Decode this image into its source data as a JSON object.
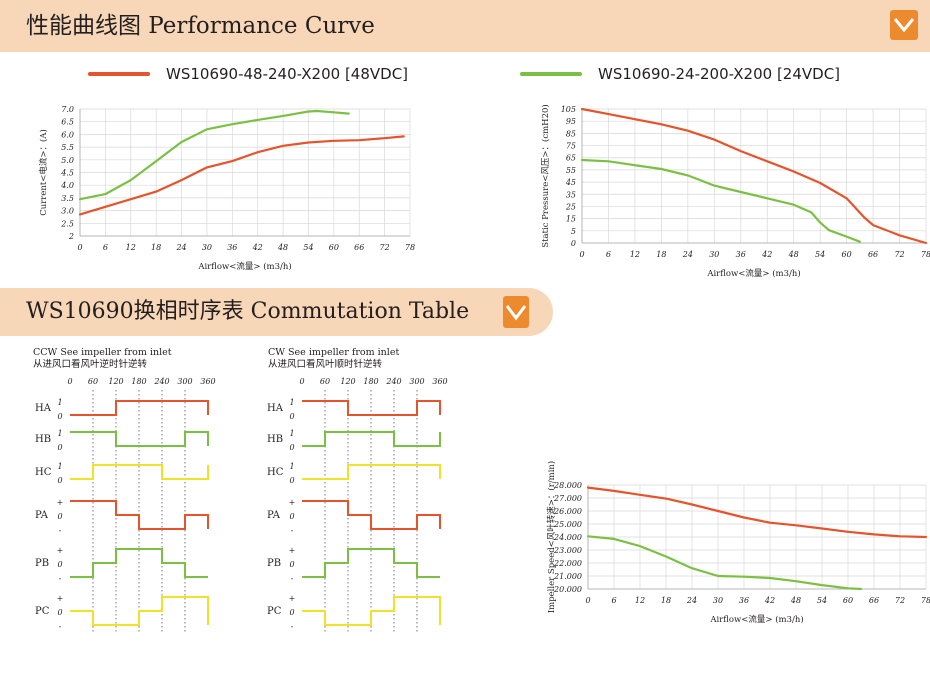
{
  "header": {
    "title": "性能曲线图 Performance Curve",
    "icon": "chevron-down-icon",
    "colors": {
      "banner": "#f8d7b8",
      "icon": "#ee8a2e"
    }
  },
  "legend": [
    {
      "label": "WS10690-48-240-X200 [48VDC]",
      "color": "#e5542b"
    },
    {
      "label": "WS10690-24-200-X200 [24VDC]",
      "color": "#7bc043"
    }
  ],
  "chart_data": [
    {
      "type": "line",
      "ylabel": "Current<电流>：(A)",
      "xlabel": "Airflow<流量> (m3/h)",
      "x_ticks": [
        "0",
        "6",
        "12",
        "18",
        "24",
        "30",
        "36",
        "42",
        "48",
        "54",
        "60",
        "66",
        "72",
        "78"
      ],
      "y_ticks": [
        "2",
        "2.5",
        "3.0",
        "3.5",
        "4.0",
        "4.5",
        "5.0",
        "5.5",
        "6.0",
        "6.5",
        "7.0"
      ],
      "xlim": [
        0,
        78
      ],
      "ylim": [
        2,
        7
      ],
      "grid": true,
      "series": [
        {
          "name": "WS10690-48-240-X200 [48VDC]",
          "color": "#e5542b",
          "x": [
            0,
            6,
            12,
            18,
            24,
            30,
            36,
            42,
            48,
            54,
            60,
            66,
            72,
            76.5
          ],
          "y": [
            2.85,
            3.15,
            3.45,
            3.75,
            4.2,
            4.7,
            4.95,
            5.3,
            5.55,
            5.68,
            5.75,
            5.77,
            5.85,
            5.92
          ]
        },
        {
          "name": "WS10690-24-200-X200 [24VDC]",
          "color": "#7bc043",
          "x": [
            0,
            6,
            12,
            18,
            24,
            30,
            36,
            42,
            48,
            54,
            56,
            60,
            63.5
          ],
          "y": [
            3.45,
            3.65,
            4.2,
            4.95,
            5.7,
            6.2,
            6.4,
            6.57,
            6.73,
            6.9,
            6.92,
            6.87,
            6.82
          ]
        }
      ]
    },
    {
      "type": "line",
      "ylabel": "Static Pressure<风压>：(cmH20)",
      "xlabel": "Airflow<流量> (m3/h)",
      "x_ticks": [
        "0",
        "6",
        "12",
        "18",
        "24",
        "30",
        "36",
        "42",
        "48",
        "54",
        "60",
        "66",
        "72",
        "78"
      ],
      "y_ticks": [
        "0",
        "5",
        "15",
        "25",
        "35",
        "45",
        "55",
        "65",
        "75",
        "85",
        "95",
        "105"
      ],
      "xlim": [
        0,
        78
      ],
      "ylim": [
        0,
        105
      ],
      "grid": true,
      "series": [
        {
          "name": "WS10690-48-240-X200 [48VDC]",
          "color": "#e5542b",
          "x": [
            0,
            6,
            12,
            18,
            24,
            30,
            36,
            42,
            48,
            54,
            60,
            64,
            66,
            72,
            78
          ],
          "y": [
            105,
            101,
            97,
            93,
            88,
            81,
            72,
            64,
            56,
            47,
            35,
            20,
            14,
            6,
            0
          ]
        },
        {
          "name": "WS10690-24-200-X200 [24VDC]",
          "color": "#7bc043",
          "x": [
            0,
            6,
            12,
            18,
            24,
            30,
            36,
            42,
            48,
            52,
            54,
            56,
            60,
            63
          ],
          "y": [
            65,
            64,
            61,
            58,
            53,
            45,
            40,
            35,
            30,
            24,
            16,
            10,
            5,
            1
          ]
        }
      ]
    },
    {
      "type": "line",
      "ylabel": "Impeller Speed<风叶转速>：(r/min)",
      "xlabel": "Airflow<流量> (m3/h)",
      "x_ticks": [
        "0",
        "6",
        "12",
        "18",
        "24",
        "30",
        "36",
        "42",
        "48",
        "54",
        "60",
        "66",
        "72",
        "78"
      ],
      "y_ticks": [
        "20.000",
        "21.000",
        "22.000",
        "23.000",
        "24.000",
        "25.000",
        "26.000",
        "27.000",
        "28.000"
      ],
      "xlim": [
        0,
        78
      ],
      "ylim": [
        20000,
        28000
      ],
      "grid": true,
      "series": [
        {
          "name": "WS10690-48-240-X200 [48VDC]",
          "color": "#e5542b",
          "x": [
            0,
            6,
            12,
            18,
            24,
            30,
            36,
            42,
            48,
            54,
            60,
            66,
            72,
            78
          ],
          "y": [
            27800,
            27550,
            27250,
            26950,
            26500,
            26000,
            25500,
            25100,
            24900,
            24650,
            24400,
            24200,
            24050,
            24000
          ]
        },
        {
          "name": "WS10690-24-200-X200 [24VDC]",
          "color": "#7bc043",
          "x": [
            0,
            6,
            12,
            18,
            24,
            30,
            36,
            42,
            48,
            54,
            60,
            63
          ],
          "y": [
            24050,
            23850,
            23300,
            22500,
            21600,
            21000,
            20950,
            20850,
            20600,
            20300,
            20050,
            20000
          ]
        }
      ]
    }
  ],
  "commutation": {
    "title": "WS10690换相时序表 Commutation Table",
    "icon": "chevron-down-icon",
    "angle_ticks": [
      "0",
      "60",
      "120",
      "180",
      "240",
      "300",
      "360"
    ],
    "colors": {
      "HA": "#e5542b",
      "HB": "#7bc043",
      "HC": "#f2e12a",
      "PA": "#e5542b",
      "PB": "#7bc043",
      "PC": "#f2e12a"
    },
    "tables": [
      {
        "title_en": "CCW  See impeller from inlet",
        "title_cn": "从进风口看风叶逆时针逆转",
        "signals": [
          {
            "name": "HA",
            "levels": [
              "1",
              "0"
            ],
            "type": "hall",
            "values": [
              0,
              0,
              1,
              1,
              1,
              1
            ]
          },
          {
            "name": "HB",
            "levels": [
              "1",
              "0"
            ],
            "type": "hall",
            "values": [
              1,
              1,
              0,
              0,
              0,
              1
            ]
          },
          {
            "name": "HC",
            "levels": [
              "1",
              "0"
            ],
            "type": "hall",
            "values": [
              0,
              1,
              1,
              1,
              0,
              0
            ]
          },
          {
            "name": "PA",
            "levels": [
              "+",
              "0",
              "-"
            ],
            "type": "phase",
            "values": [
              1,
              1,
              0,
              -1,
              -1,
              0
            ]
          },
          {
            "name": "PB",
            "levels": [
              "+",
              "0",
              "-"
            ],
            "type": "phase",
            "values": [
              -1,
              0,
              1,
              1,
              0,
              -1
            ]
          },
          {
            "name": "PC",
            "levels": [
              "+",
              "0",
              "-"
            ],
            "type": "phase",
            "values": [
              0,
              -1,
              -1,
              0,
              1,
              1
            ]
          }
        ]
      },
      {
        "title_en": "CW  See impeller from inlet",
        "title_cn": "从进风口看风叶顺时针逆转",
        "signals": [
          {
            "name": "HA",
            "levels": [
              "1",
              "0"
            ],
            "type": "hall",
            "values": [
              1,
              1,
              0,
              0,
              0,
              1
            ]
          },
          {
            "name": "HB",
            "levels": [
              "1",
              "0"
            ],
            "type": "hall",
            "values": [
              0,
              1,
              1,
              1,
              0,
              0
            ]
          },
          {
            "name": "HC",
            "levels": [
              "1",
              "0"
            ],
            "type": "hall",
            "values": [
              0,
              0,
              1,
              1,
              1,
              1
            ]
          },
          {
            "name": "PA",
            "levels": [
              "+",
              "0",
              "-"
            ],
            "type": "phase",
            "values": [
              1,
              1,
              0,
              -1,
              -1,
              0
            ]
          },
          {
            "name": "PB",
            "levels": [
              "+",
              "0",
              "-"
            ],
            "type": "phase",
            "values": [
              -1,
              0,
              1,
              1,
              0,
              -1
            ]
          },
          {
            "name": "PC",
            "levels": [
              "+",
              "0",
              "-"
            ],
            "type": "phase",
            "values": [
              0,
              -1,
              -1,
              0,
              1,
              1
            ]
          }
        ]
      }
    ]
  }
}
